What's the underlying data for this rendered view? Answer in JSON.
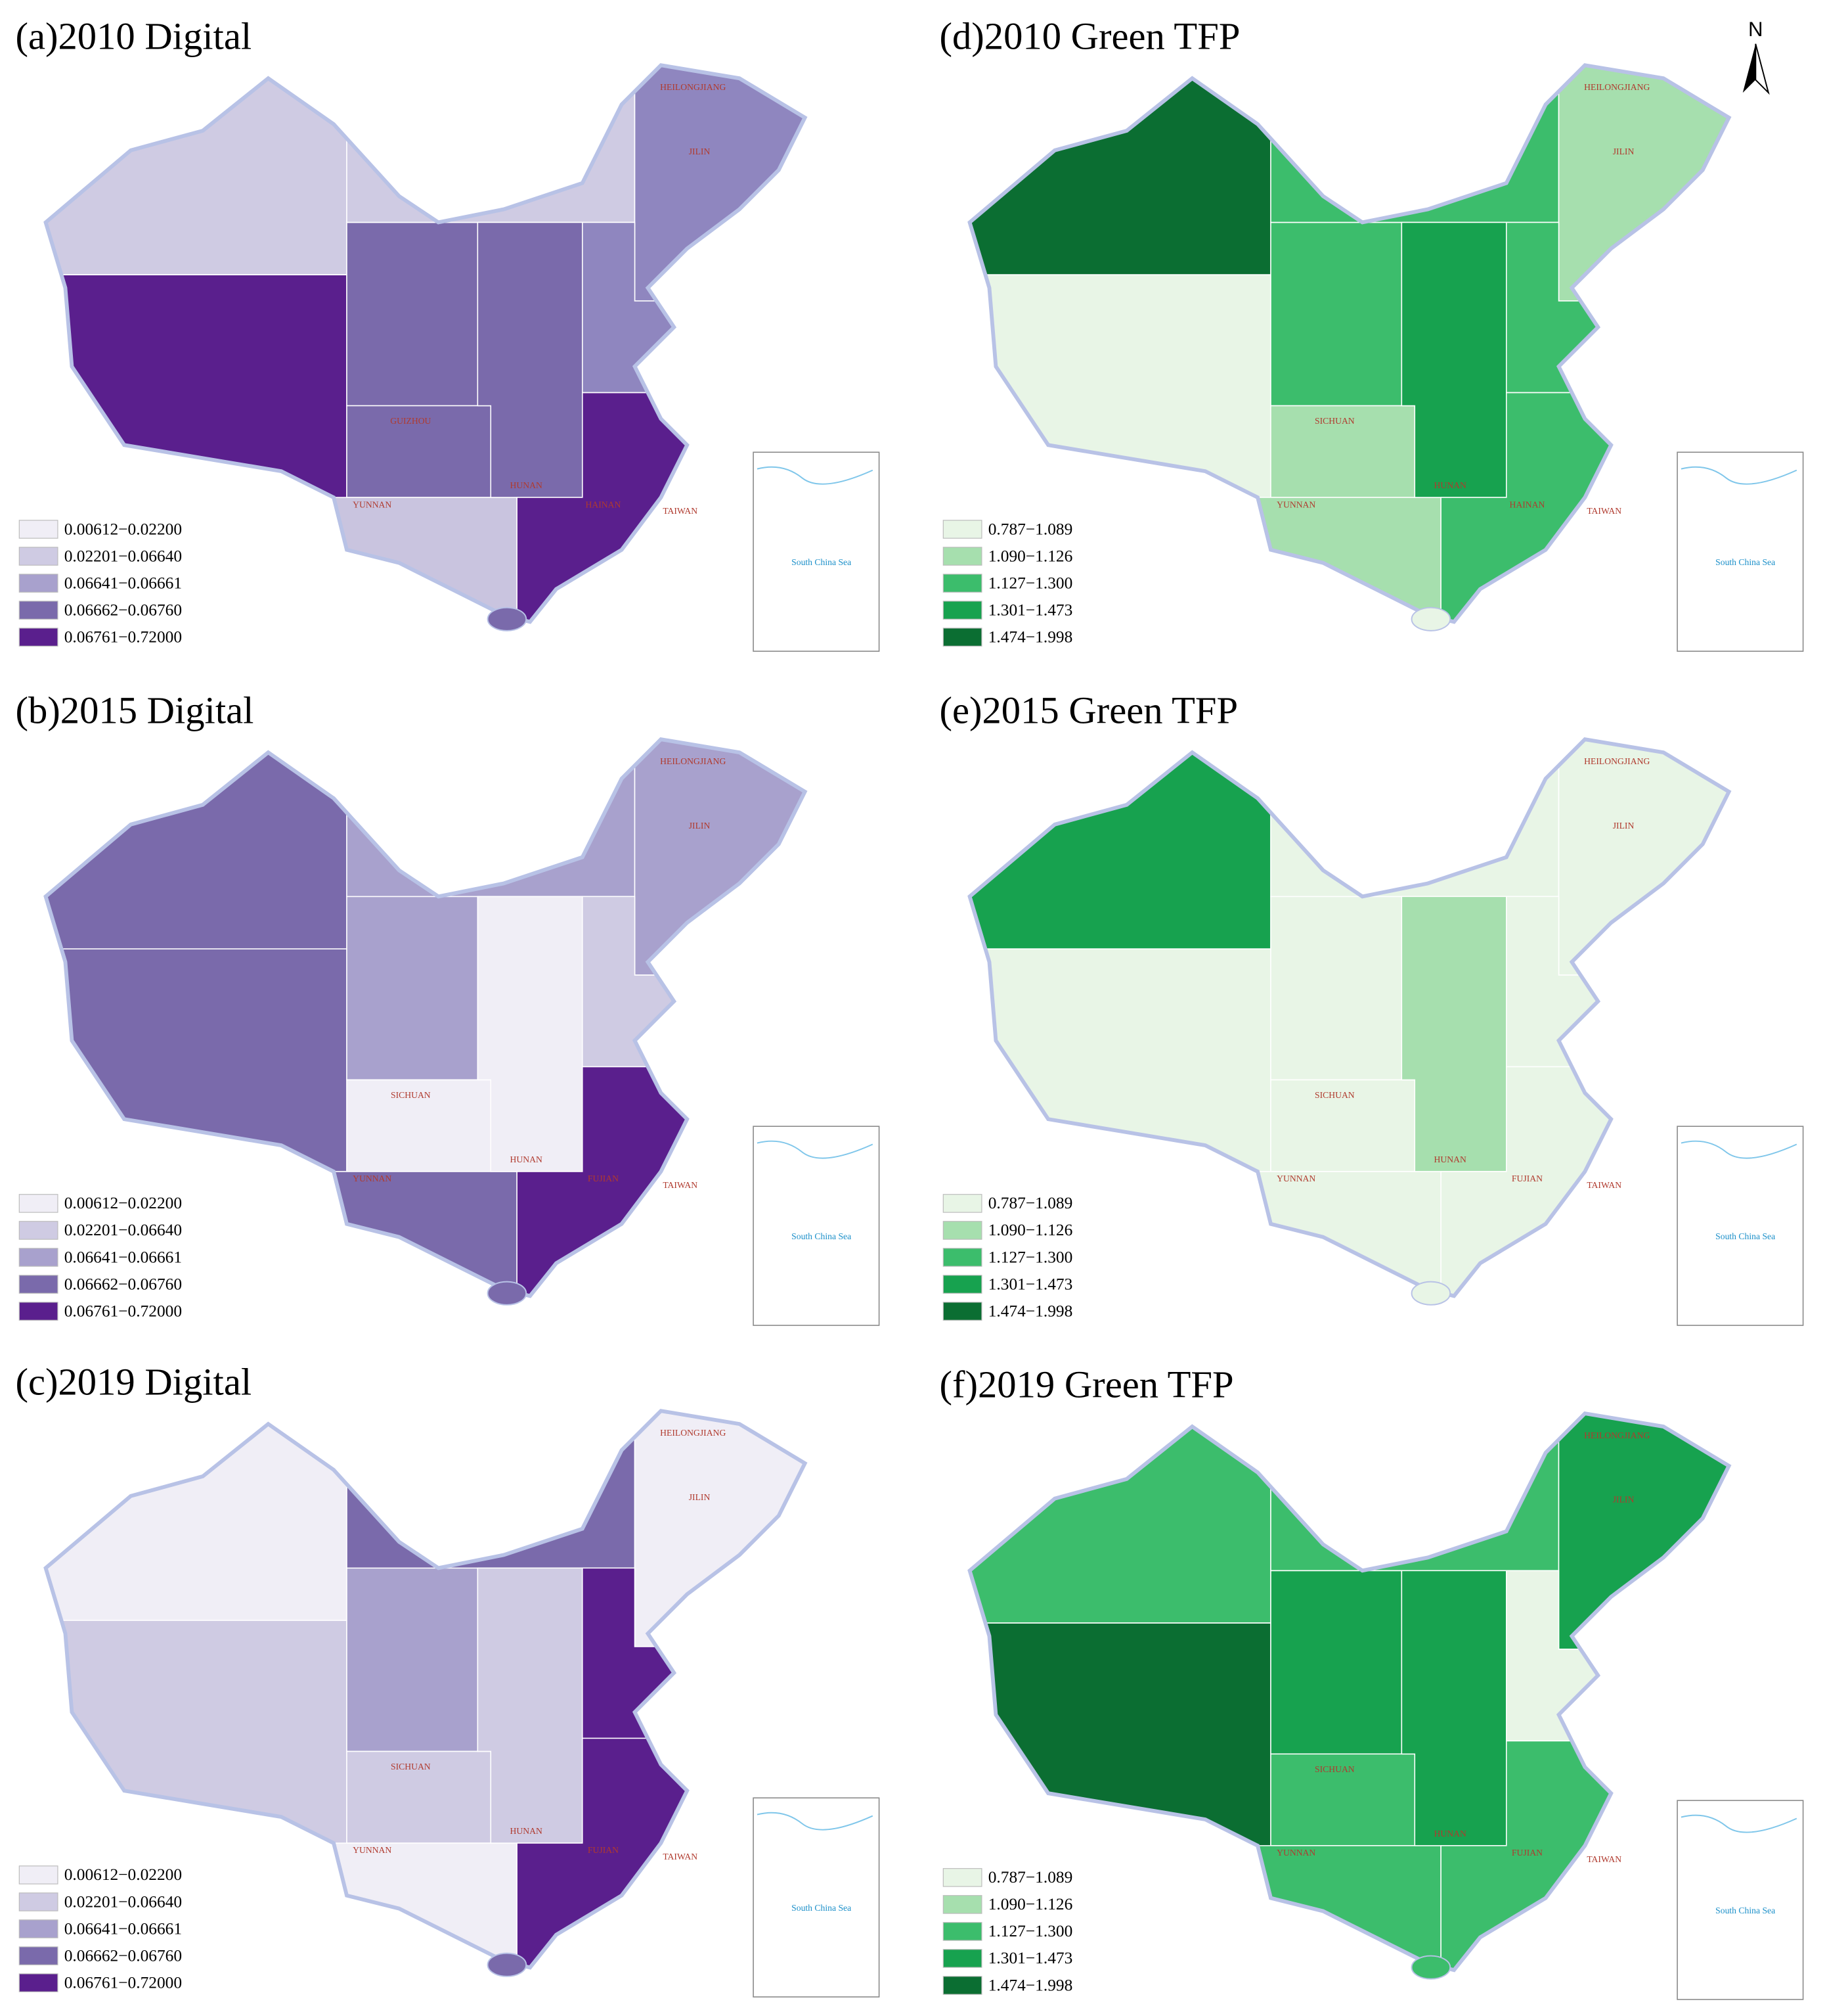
{
  "north_label": "N",
  "panels": [
    {
      "title": "(a)2010 Digital",
      "legend": [
        {
          "label": "0.00612−0.02200",
          "color": "#f0eef6"
        },
        {
          "label": "0.02201−0.06640",
          "color": "#cfcbe3"
        },
        {
          "label": "0.06641−0.06661",
          "color": "#a8a1cd"
        },
        {
          "label": "0.06662−0.06760",
          "color": "#7a6aab"
        },
        {
          "label": "0.06761−0.72000",
          "color": "#5a1f8d"
        }
      ],
      "region_colors": [
        "#cfcbe3",
        "#5a1f8d",
        "#7a6aab",
        "#cfcbe3",
        "#8f86bf",
        "#7a6aab",
        "#c9c4df",
        "#7a6aab",
        "#8f86bf",
        "#5a1f8d",
        "#7a6aab"
      ],
      "labels": [
        "HEILONGJIANG",
        "JILIN",
        "GUIZHOU",
        "YUNNAN",
        "HUNAN",
        "HAINAN",
        "TAIWAN"
      ],
      "inset_label": "South China Sea"
    },
    {
      "title": "(b)2015 Digital",
      "legend": [
        {
          "label": "0.00612−0.02200",
          "color": "#f0eef6"
        },
        {
          "label": "0.02201−0.06640",
          "color": "#cfcbe3"
        },
        {
          "label": "0.06641−0.06661",
          "color": "#a8a1cd"
        },
        {
          "label": "0.06662−0.06760",
          "color": "#7a6aab"
        },
        {
          "label": "0.06761−0.72000",
          "color": "#5a1f8d"
        }
      ],
      "region_colors": [
        "#7a6aab",
        "#7a6aab",
        "#a8a1cd",
        "#a8a1cd",
        "#a8a1cd",
        "#f0eef6",
        "#7a6aab",
        "#f0eef6",
        "#cfcbe3",
        "#5a1f8d",
        "#7a6aab"
      ],
      "labels": [
        "HEILONGJIANG",
        "JILIN",
        "SICHUAN",
        "YUNNAN",
        "HUNAN",
        "FUJIAN",
        "TAIWAN"
      ],
      "inset_label": "South China Sea"
    },
    {
      "title": "(c)2019 Digital",
      "legend": [
        {
          "label": "0.00612−0.02200",
          "color": "#f0eef6"
        },
        {
          "label": "0.02201−0.06640",
          "color": "#cfcbe3"
        },
        {
          "label": "0.06641−0.06661",
          "color": "#a8a1cd"
        },
        {
          "label": "0.06662−0.06760",
          "color": "#7a6aab"
        },
        {
          "label": "0.06761−0.72000",
          "color": "#5a1f8d"
        }
      ],
      "region_colors": [
        "#f0eef6",
        "#cfcbe3",
        "#a8a1cd",
        "#7a6aab",
        "#f0eef6",
        "#cfcbe3",
        "#f0eef6",
        "#cfcbe3",
        "#5a1f8d",
        "#5a1f8d",
        "#7a6aab"
      ],
      "labels": [
        "HEILONGJIANG",
        "JILIN",
        "SICHUAN",
        "YUNNAN",
        "HUNAN",
        "FUJIAN",
        "TAIWAN"
      ],
      "inset_label": "South China Sea"
    },
    {
      "title": "(d)2010 Green TFP",
      "legend": [
        {
          "label": "0.787−1.089",
          "color": "#e8f5e6"
        },
        {
          "label": "1.090−1.126",
          "color": "#a6dfae"
        },
        {
          "label": "1.127−1.300",
          "color": "#3cbd6c"
        },
        {
          "label": "1.301−1.473",
          "color": "#17a24f"
        },
        {
          "label": "1.474−1.998",
          "color": "#0b6e32"
        }
      ],
      "region_colors": [
        "#0b6e32",
        "#e8f5e6",
        "#3cbd6c",
        "#3cbd6c",
        "#a6dfae",
        "#a6dfae",
        "#a6dfae",
        "#17a24f",
        "#3cbd6c",
        "#3cbd6c",
        "#e8f5e6"
      ],
      "labels": [
        "HEILONGJIANG",
        "JILIN",
        "SICHUAN",
        "YUNNAN",
        "HUNAN",
        "HAINAN",
        "TAIWAN"
      ],
      "inset_label": "South China Sea"
    },
    {
      "title": "(e)2015 Green TFP",
      "legend": [
        {
          "label": "0.787−1.089",
          "color": "#e8f5e6"
        },
        {
          "label": "1.090−1.126",
          "color": "#a6dfae"
        },
        {
          "label": "1.127−1.300",
          "color": "#3cbd6c"
        },
        {
          "label": "1.301−1.473",
          "color": "#17a24f"
        },
        {
          "label": "1.474−1.998",
          "color": "#0b6e32"
        }
      ],
      "region_colors": [
        "#17a24f",
        "#e8f5e6",
        "#e8f5e6",
        "#e8f5e6",
        "#e8f5e6",
        "#e8f5e6",
        "#e8f5e6",
        "#a6dfae",
        "#e8f5e6",
        "#e8f5e6",
        "#e8f5e6"
      ],
      "labels": [
        "HEILONGJIANG",
        "JILIN",
        "SICHUAN",
        "YUNNAN",
        "HUNAN",
        "FUJIAN",
        "TAIWAN"
      ],
      "inset_label": "South China Sea"
    },
    {
      "title": "(f)2019 Green TFP",
      "legend": [
        {
          "label": "0.787−1.089",
          "color": "#e8f5e6"
        },
        {
          "label": "1.090−1.126",
          "color": "#a6dfae"
        },
        {
          "label": "1.127−1.300",
          "color": "#3cbd6c"
        },
        {
          "label": "1.301−1.473",
          "color": "#17a24f"
        },
        {
          "label": "1.474−1.998",
          "color": "#0b6e32"
        }
      ],
      "region_colors": [
        "#3cbd6c",
        "#0b6e32",
        "#17a24f",
        "#3cbd6c",
        "#17a24f",
        "#3cbd6c",
        "#3cbd6c",
        "#17a24f",
        "#e8f5e6",
        "#3cbd6c",
        "#3cbd6c"
      ],
      "labels": [
        "HEILONGJIANG",
        "JILIN",
        "SICHUAN",
        "YUNNAN",
        "HUNAN",
        "FUJIAN",
        "TAIWAN"
      ],
      "inset_label": "South China Sea"
    }
  ]
}
